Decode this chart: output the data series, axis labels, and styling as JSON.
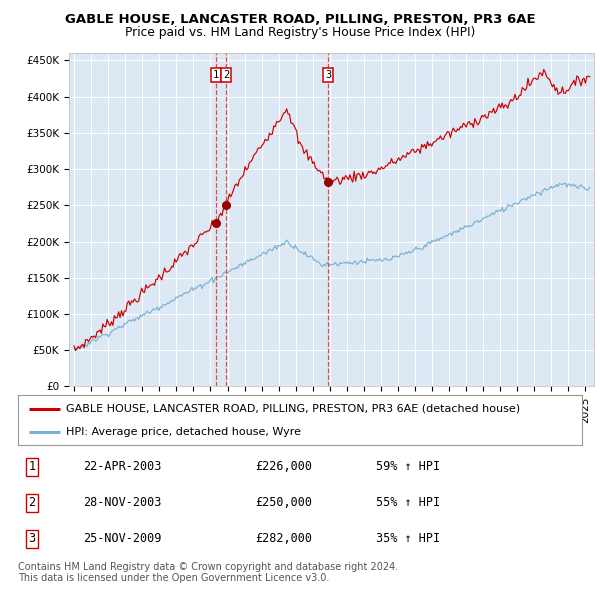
{
  "title": "GABLE HOUSE, LANCASTER ROAD, PILLING, PRESTON, PR3 6AE",
  "subtitle": "Price paid vs. HM Land Registry's House Price Index (HPI)",
  "ylabel_ticks": [
    "£0",
    "£50K",
    "£100K",
    "£150K",
    "£200K",
    "£250K",
    "£300K",
    "£350K",
    "£400K",
    "£450K"
  ],
  "ytick_values": [
    0,
    50000,
    100000,
    150000,
    200000,
    250000,
    300000,
    350000,
    400000,
    450000
  ],
  "ylim": [
    0,
    460000
  ],
  "xlim_start": 1994.7,
  "xlim_end": 2025.5,
  "background_color": "#dce9f5",
  "grid_color": "#ffffff",
  "red_line_color": "#cc0000",
  "blue_line_color": "#7bafd4",
  "vline_color": "#ee3333",
  "transactions": [
    {
      "id": 1,
      "date_label": "22-APR-2003",
      "date_num": 2003.31,
      "price": 226000,
      "pct": "59%",
      "direction": "↑"
    },
    {
      "id": 2,
      "date_label": "28-NOV-2003",
      "date_num": 2003.91,
      "price": 250000,
      "pct": "55%",
      "direction": "↑"
    },
    {
      "id": 3,
      "date_label": "25-NOV-2009",
      "date_num": 2009.92,
      "price": 282000,
      "pct": "35%",
      "direction": "↑"
    }
  ],
  "legend_line1": "GABLE HOUSE, LANCASTER ROAD, PILLING, PRESTON, PR3 6AE (detached house)",
  "legend_line2": "HPI: Average price, detached house, Wyre",
  "footer_line1": "Contains HM Land Registry data © Crown copyright and database right 2024.",
  "footer_line2": "This data is licensed under the Open Government Licence v3.0.",
  "title_fontsize": 9.5,
  "subtitle_fontsize": 8.8,
  "tick_fontsize": 7.5,
  "legend_fontsize": 8.0,
  "table_fontsize": 8.5,
  "footer_fontsize": 7.0
}
